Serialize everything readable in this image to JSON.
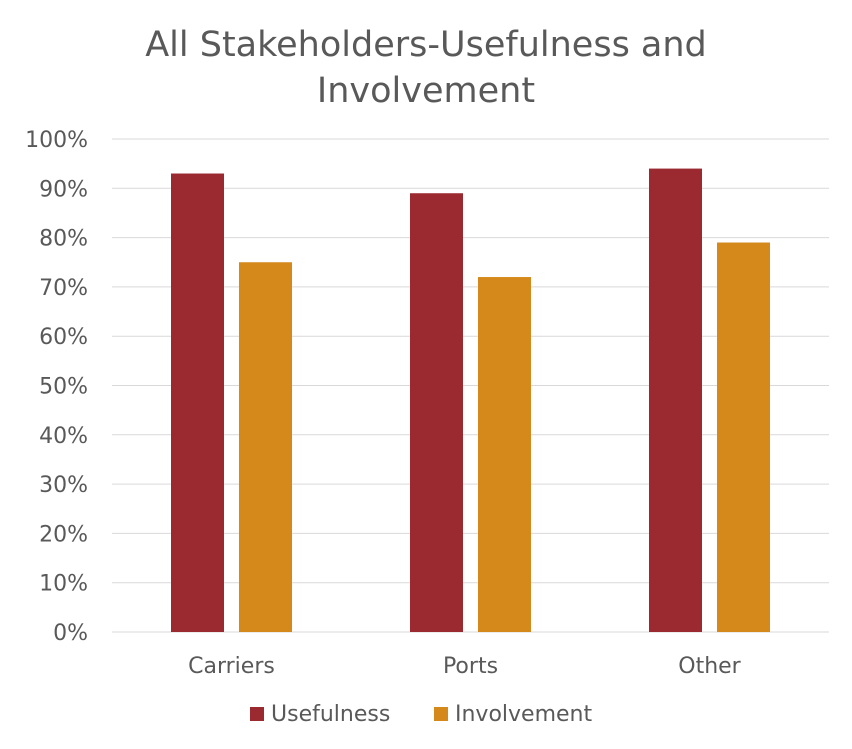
{
  "chart_data": {
    "type": "bar",
    "title": "All Stakeholders-Usefulness and Involvement",
    "title_lines": [
      "All Stakeholders-Usefulness and",
      "Involvement"
    ],
    "categories": [
      "Carriers",
      "Ports",
      "Other"
    ],
    "series": [
      {
        "name": "Usefulness",
        "values": [
          93,
          89,
          94
        ],
        "color": "#9B2A30"
      },
      {
        "name": "Involvement",
        "values": [
          75,
          72,
          79
        ],
        "color": "#D4891A"
      }
    ],
    "ylim": [
      0,
      100
    ],
    "y_ticks": [
      0,
      10,
      20,
      30,
      40,
      50,
      60,
      70,
      80,
      90,
      100
    ],
    "y_tick_labels": [
      "0%",
      "10%",
      "20%",
      "30%",
      "40%",
      "50%",
      "60%",
      "70%",
      "80%",
      "90%",
      "100%"
    ],
    "grid": true,
    "legend_position": "bottom",
    "xlabel": "",
    "ylabel": ""
  }
}
